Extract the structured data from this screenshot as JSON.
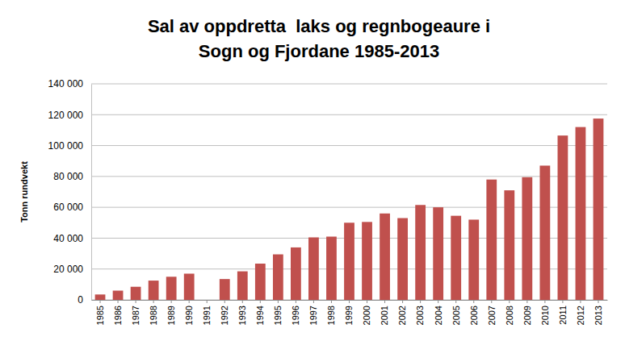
{
  "chart_data": {
    "type": "bar",
    "title": [
      "Sal av oppdretta  laks og regnbogeaure i",
      "Sogn og Fjordane 1985-2013"
    ],
    "y_label": "Tonn rundvekt",
    "categories": [
      "1985",
      "1986",
      "1987",
      "1988",
      "1989",
      "1990",
      "1991",
      "1992",
      "1993",
      "1994",
      "1995",
      "1996",
      "1997",
      "1998",
      "1999",
      "2000",
      "2001",
      "2002",
      "2003",
      "2004",
      "2005",
      "2006",
      "2007",
      "2008",
      "2009",
      "2010",
      "2011",
      "2012",
      "2013"
    ],
    "values": [
      3500,
      6000,
      8500,
      12500,
      15000,
      17000,
      null,
      13500,
      18500,
      23500,
      29500,
      34000,
      40500,
      41000,
      50000,
      50500,
      56000,
      53000,
      61500,
      60000,
      54500,
      52000,
      78000,
      71000,
      79500,
      87000,
      106500,
      112000,
      117500
    ],
    "color": "#c0504d",
    "ylim": [
      0,
      140000
    ],
    "yticks": [
      0,
      {
        "value": 20000,
        "label": "20 000"
      },
      {
        "value": 40000,
        "label": "40 000"
      },
      {
        "value": 60000,
        "label": "60 000"
      },
      {
        "value": 80000,
        "label": "80 000"
      },
      {
        "value": 100000,
        "label": "100 000"
      },
      {
        "value": 120000,
        "label": "120 000"
      },
      {
        "value": 140000,
        "label": "140 000"
      }
    ],
    "grid": true
  }
}
